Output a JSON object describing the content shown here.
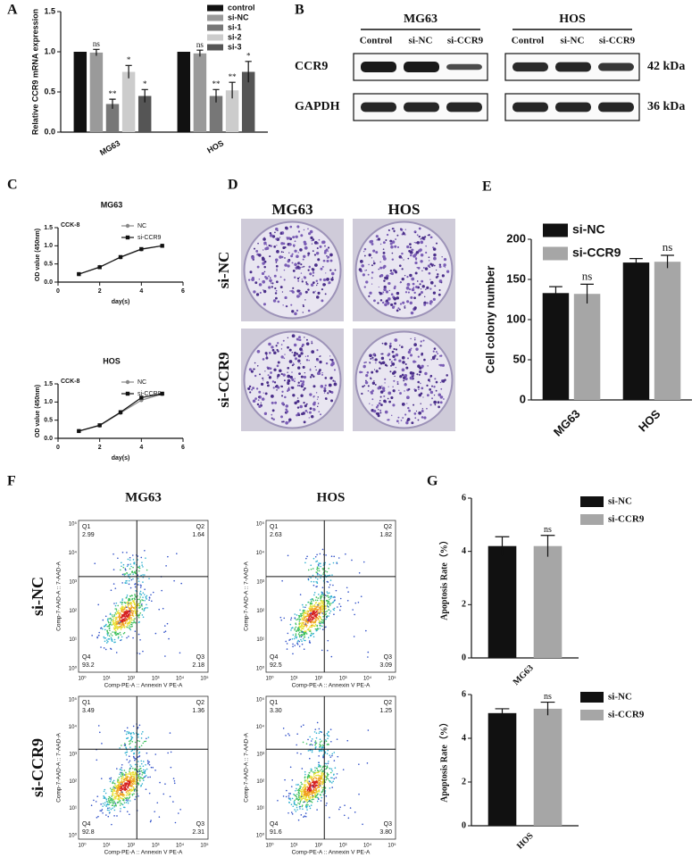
{
  "panel_labels": [
    "A",
    "B",
    "C",
    "D",
    "E",
    "F",
    "G"
  ],
  "blot": {
    "cell_lines": [
      "MG63",
      "HOS"
    ],
    "lanes": [
      "Control",
      "si-NC",
      "si-CCR9"
    ],
    "proteins": [
      {
        "name": "CCR9",
        "size": "42 kDa"
      },
      {
        "name": "GAPDH",
        "size": "36 kDa"
      }
    ]
  },
  "colonies": {
    "columns": [
      "MG63",
      "HOS"
    ],
    "rows": [
      "si-NC",
      "si-CCR9"
    ]
  },
  "flow": {
    "columns": [
      "MG63",
      "HOS"
    ],
    "rows": [
      "si-NC",
      "si-CCR9"
    ],
    "x_label": "Comp-PE-A :: Annexin V PE-A",
    "y_label": "Comp-7-AAD-A :: 7-AAD-A",
    "ticks": [
      "10⁰",
      "10¹",
      "10²",
      "10³",
      "10⁴",
      "10⁵"
    ],
    "quadrant_names": [
      "Q1",
      "Q2",
      "Q3",
      "Q4"
    ],
    "plots": [
      [
        [
          "2.99",
          "1.64",
          "2.18",
          "93.2"
        ],
        [
          "2.63",
          "1.82",
          "3.09",
          "92.5"
        ]
      ],
      [
        [
          "3.49",
          "1.36",
          "2.31",
          "92.8"
        ],
        [
          "3.30",
          "1.25",
          "3.80",
          "91.6"
        ]
      ]
    ]
  },
  "chart_data": [
    {
      "type": "bar",
      "y_label": "Relative  CCR9 mRNA expression",
      "categories": [
        "MG63",
        "HOS"
      ],
      "ylim": [
        0,
        1.5
      ],
      "yticks": [
        {
          "value": 0,
          "label": "0.0"
        },
        0.5,
        {
          "value": 1,
          "label": "1.0"
        },
        1.5
      ],
      "series": [
        {
          "name": "control",
          "color": "#111111",
          "values": [
            1.0,
            1.0
          ]
        },
        {
          "name": "si-NC",
          "color": "#9a9a9a",
          "values": [
            0.99,
            0.98
          ],
          "errors": [
            0.04,
            0.04
          ],
          "annotations": [
            "ns",
            "ns"
          ]
        },
        {
          "name": "si-1",
          "color": "#777777",
          "values": [
            0.35,
            0.45
          ],
          "errors": [
            0.06,
            0.08
          ],
          "annotations": [
            "**",
            "**"
          ]
        },
        {
          "name": "si-2",
          "color": "#cccccc",
          "values": [
            0.75,
            0.52
          ],
          "errors": [
            0.08,
            0.1
          ],
          "annotations": [
            "*",
            "**"
          ]
        },
        {
          "name": "si-3",
          "color": "#555555",
          "values": [
            0.45,
            0.75
          ],
          "errors": [
            0.08,
            0.13
          ],
          "annotations": [
            "*",
            "*"
          ]
        }
      ]
    },
    {
      "type": "line",
      "title": "MG63",
      "annotation": "CCK-8",
      "x_label": "day(s)",
      "y_label": "OD value (450nm)",
      "x": [
        1,
        2,
        3,
        4,
        5
      ],
      "xlim": [
        0,
        6
      ],
      "xticks": [
        0,
        2,
        4,
        6
      ],
      "ylim": [
        0,
        1.5
      ],
      "yticks": [
        {
          "value": 0,
          "label": "0.0"
        },
        0.5,
        {
          "value": 1,
          "label": "1.0"
        },
        1.5
      ],
      "series": [
        {
          "name": "NC",
          "color": "#888888",
          "marker": "circle",
          "values": [
            0.22,
            0.42,
            0.68,
            0.9,
            1.0
          ]
        },
        {
          "name": "si-CCR9",
          "color": "#111111",
          "marker": "square",
          "values": [
            0.22,
            0.41,
            0.69,
            0.91,
            1.0
          ]
        }
      ]
    },
    {
      "type": "line",
      "title": "HOS",
      "annotation": "CCK-8",
      "x_label": "day(s)",
      "y_label": "OD value (450nm)",
      "x": [
        1,
        2,
        3,
        4,
        5
      ],
      "xlim": [
        0,
        6
      ],
      "xticks": [
        0,
        2,
        4,
        6
      ],
      "ylim": [
        0,
        1.5
      ],
      "yticks": [
        {
          "value": 0,
          "label": "0.0"
        },
        0.5,
        {
          "value": 1,
          "label": "1.0"
        },
        1.5
      ],
      "series": [
        {
          "name": "NC",
          "color": "#888888",
          "marker": "circle",
          "values": [
            0.2,
            0.35,
            0.7,
            1.05,
            1.22
          ]
        },
        {
          "name": "si-CCR9",
          "color": "#111111",
          "marker": "square",
          "values": [
            0.2,
            0.36,
            0.72,
            1.12,
            1.23
          ]
        }
      ]
    },
    {
      "type": "bar",
      "y_label": "Cell colony number",
      "categories": [
        "MG63",
        "HOS"
      ],
      "ylim": [
        0,
        200
      ],
      "yticks": [
        0,
        50,
        100,
        150,
        200
      ],
      "series": [
        {
          "name": "si-NC",
          "color": "#111111",
          "values": [
            133,
            171
          ],
          "errors": [
            8,
            5
          ]
        },
        {
          "name": "si-CCR9",
          "color": "#a6a6a6",
          "values": [
            132,
            172
          ],
          "errors": [
            12,
            8
          ],
          "annotations": [
            "ns",
            "ns"
          ]
        }
      ]
    },
    {
      "type": "bar",
      "y_label": "Apoptosis Rate（%）",
      "categories": [
        "MG63"
      ],
      "ylim": [
        0,
        6
      ],
      "yticks": [
        0,
        2,
        4,
        6
      ],
      "series": [
        {
          "name": "si-NC",
          "color": "#111111",
          "values": [
            4.2
          ],
          "errors": [
            0.35
          ]
        },
        {
          "name": "si-CCR9",
          "color": "#a6a6a6",
          "values": [
            4.2
          ],
          "errors": [
            0.4
          ],
          "annotations": [
            "ns"
          ]
        }
      ]
    },
    {
      "type": "bar",
      "y_label": "Apoptosis Rate（%）",
      "categories": [
        "HOS"
      ],
      "ylim": [
        0,
        6
      ],
      "yticks": [
        0,
        2,
        4,
        6
      ],
      "series": [
        {
          "name": "si-NC",
          "color": "#111111",
          "values": [
            5.15
          ],
          "errors": [
            0.2
          ]
        },
        {
          "name": "si-CCR9",
          "color": "#a6a6a6",
          "values": [
            5.35
          ],
          "errors": [
            0.3
          ],
          "annotations": [
            "ns"
          ]
        }
      ]
    }
  ]
}
